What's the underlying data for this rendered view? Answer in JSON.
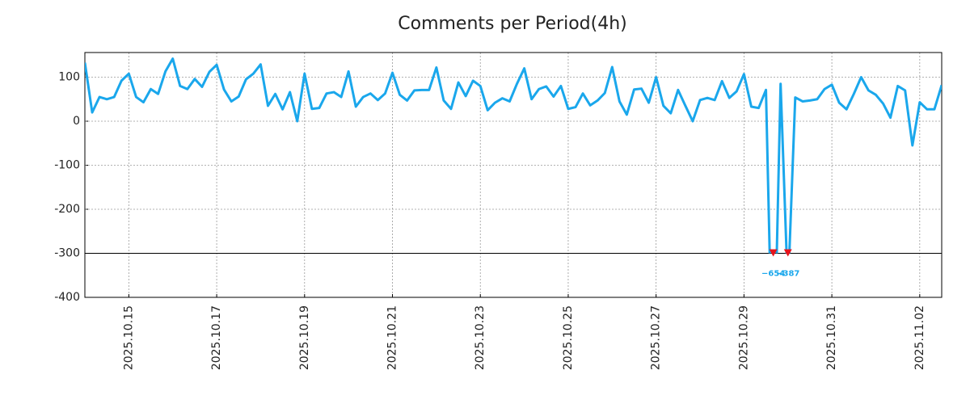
{
  "chart_data": {
    "type": "line",
    "title": "Comments per Period(4h)",
    "categories": [
      null,
      null,
      null,
      null,
      null,
      null,
      "2025.10.15",
      null,
      null,
      null,
      null,
      null,
      null,
      null,
      null,
      null,
      null,
      null,
      "2025.10.17",
      null,
      null,
      null,
      null,
      null,
      null,
      null,
      null,
      null,
      null,
      null,
      "2025.10.19",
      null,
      null,
      null,
      null,
      null,
      null,
      null,
      null,
      null,
      null,
      null,
      "2025.10.21",
      null,
      null,
      null,
      null,
      null,
      null,
      null,
      null,
      null,
      null,
      null,
      "2025.10.23",
      null,
      null,
      null,
      null,
      null,
      null,
      null,
      null,
      null,
      null,
      null,
      "2025.10.25",
      null,
      null,
      null,
      null,
      null,
      null,
      null,
      null,
      null,
      null,
      null,
      "2025.10.27",
      null,
      null,
      null,
      null,
      null,
      null,
      null,
      null,
      null,
      null,
      null,
      "2025.10.29",
      null,
      null,
      null,
      null,
      null,
      null,
      null,
      null,
      null,
      null,
      null,
      "2025.10.31",
      null,
      null,
      null,
      null,
      null,
      null,
      null,
      null,
      null,
      null,
      null,
      "2025.11.02",
      null,
      null,
      null
    ],
    "values": [
      133,
      20,
      55,
      50,
      55,
      92,
      108,
      55,
      43,
      73,
      62,
      113,
      142,
      80,
      73,
      96,
      78,
      112,
      128,
      72,
      45,
      56,
      95,
      108,
      129,
      35,
      62,
      27,
      66,
      0,
      108,
      28,
      30,
      63,
      66,
      55,
      113,
      33,
      55,
      63,
      48,
      63,
      110,
      60,
      47,
      70,
      71,
      71,
      122,
      47,
      28,
      88,
      57,
      92,
      80,
      25,
      42,
      52,
      45,
      85,
      120,
      50,
      73,
      79,
      56,
      80,
      28,
      32,
      63,
      36,
      47,
      64,
      123,
      45,
      15,
      72,
      74,
      42,
      100,
      35,
      18,
      71,
      35,
      0,
      48,
      53,
      48,
      91,
      53,
      68,
      107,
      33,
      30,
      71,
      -654,
      85,
      -387,
      54,
      45,
      47,
      50,
      73,
      83,
      42,
      27,
      62,
      100,
      70,
      60,
      40,
      8,
      80,
      70,
      -55,
      43,
      27,
      27,
      82
    ],
    "value_labels": [
      null,
      null,
      null,
      null,
      null,
      null,
      null,
      null,
      null,
      null,
      null,
      null,
      null,
      null,
      null,
      null,
      null,
      null,
      null,
      null,
      null,
      null,
      null,
      null,
      null,
      null,
      null,
      null,
      null,
      null,
      null,
      null,
      null,
      null,
      null,
      null,
      null,
      null,
      null,
      null,
      null,
      null,
      null,
      null,
      null,
      null,
      null,
      null,
      null,
      null,
      null,
      null,
      null,
      null,
      null,
      null,
      null,
      null,
      null,
      null,
      null,
      null,
      null,
      null,
      null,
      null,
      null,
      null,
      null,
      null,
      null,
      null,
      null,
      null,
      null,
      null,
      null,
      null,
      null,
      null,
      null,
      null,
      null,
      null,
      null,
      null,
      null,
      null,
      null,
      null,
      null,
      null,
      null,
      null,
      "−654",
      null,
      "−387",
      null,
      null,
      null,
      null,
      null,
      null,
      null,
      null,
      null,
      null,
      null,
      null,
      null,
      null,
      null,
      null,
      null,
      null,
      null,
      null,
      null
    ],
    "color": "#1aa7ec",
    "marker_color": "#e8141c",
    "hline": -300,
    "ylim": [
      -400,
      156
    ],
    "yticks": [
      -400,
      -300,
      -200,
      -100,
      0,
      100
    ],
    "grid": true
  }
}
